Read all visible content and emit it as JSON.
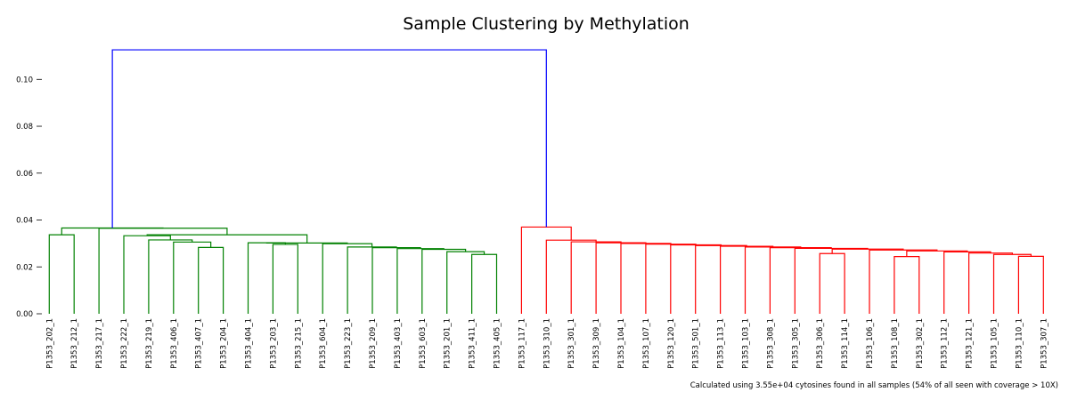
{
  "chart_data": {
    "type": "dendrogram",
    "title": "Sample Clustering by Methylation",
    "ylabel": "",
    "xlabel": "",
    "ylim": [
      0,
      0.113
    ],
    "yticks": [
      "0.00",
      "0.02",
      "0.04",
      "0.06",
      "0.08",
      "0.10"
    ],
    "ytick_values": [
      0,
      0.02,
      0.04,
      0.06,
      0.08,
      0.1
    ],
    "footnote": "Calculated using 3.55e+04 cytosines found in all samples (54% of all seen with coverage > 10X)",
    "colors": {
      "cluster_a": "#008000",
      "cluster_b": "#ff0000",
      "root": "#0000ff"
    },
    "leaves": [
      "P1353_202_1",
      "P1353_212_1",
      "P1353_217_1",
      "P1353_222_1",
      "P1353_219_1",
      "P1353_406_1",
      "P1353_407_1",
      "P1353_204_1",
      "P1353_404_1",
      "P1353_203_1",
      "P1353_215_1",
      "P1353_604_1",
      "P1353_223_1",
      "P1353_209_1",
      "P1353_403_1",
      "P1353_603_1",
      "P1353_201_1",
      "P1353_411_1",
      "P1353_405_1",
      "P1353_117_1",
      "P1353_310_1",
      "P1353_301_1",
      "P1353_309_1",
      "P1353_104_1",
      "P1353_107_1",
      "P1353_120_1",
      "P1353_501_1",
      "P1353_113_1",
      "P1353_103_1",
      "P1353_308_1",
      "P1353_305_1",
      "P1353_306_1",
      "P1353_114_1",
      "P1353_106_1",
      "P1353_108_1",
      "P1353_302_1",
      "P1353_112_1",
      "P1353_121_1",
      "P1353_105_1",
      "P1353_110_1",
      "P1353_307_1"
    ],
    "merges": [
      {
        "id": "gA1",
        "left": "P1353_202_1",
        "right": "P1353_212_1",
        "height": 0.0337,
        "color": "cluster_a"
      },
      {
        "id": "gB4",
        "left": "P1353_407_1",
        "right": "P1353_204_1",
        "height": 0.0283,
        "color": "cluster_a"
      },
      {
        "id": "gB3",
        "left": "P1353_406_1",
        "right": "gB4",
        "height": 0.0306,
        "color": "cluster_a"
      },
      {
        "id": "gB2",
        "left": "P1353_219_1",
        "right": "gB3",
        "height": 0.0315,
        "color": "cluster_a"
      },
      {
        "id": "gB1",
        "left": "P1353_222_1",
        "right": "gB2",
        "height": 0.0333,
        "color": "cluster_a"
      },
      {
        "id": "gC3",
        "left": "P1353_203_1",
        "right": "P1353_215_1",
        "height": 0.0296,
        "color": "cluster_a"
      },
      {
        "id": "gC2",
        "left": "P1353_404_1",
        "right": "gC3",
        "height": 0.0303,
        "color": "cluster_a"
      },
      {
        "id": "gD8",
        "left": "P1353_411_1",
        "right": "P1353_405_1",
        "height": 0.0253,
        "color": "cluster_a"
      },
      {
        "id": "gD7",
        "left": "P1353_201_1",
        "right": "gD8",
        "height": 0.0265,
        "color": "cluster_a"
      },
      {
        "id": "gD6",
        "left": "P1353_603_1",
        "right": "gD7",
        "height": 0.0275,
        "color": "cluster_a"
      },
      {
        "id": "gD5",
        "left": "P1353_403_1",
        "right": "gD6",
        "height": 0.0278,
        "color": "cluster_a"
      },
      {
        "id": "gD4",
        "left": "P1353_209_1",
        "right": "gD5",
        "height": 0.0282,
        "color": "cluster_a"
      },
      {
        "id": "gD3",
        "left": "P1353_223_1",
        "right": "gD4",
        "height": 0.0285,
        "color": "cluster_a"
      },
      {
        "id": "gD2",
        "left": "P1353_604_1",
        "right": "gD3",
        "height": 0.0299,
        "color": "cluster_a"
      },
      {
        "id": "gC1",
        "left": "gC2",
        "right": "gD2",
        "height": 0.0302,
        "color": "cluster_a"
      },
      {
        "id": "gX",
        "left": "gB1",
        "right": "gC1",
        "height": 0.0337,
        "color": "cluster_a"
      },
      {
        "id": "gY",
        "left": "P1353_217_1",
        "right": "gX",
        "height": 0.0365,
        "color": "cluster_a"
      },
      {
        "id": "gTop",
        "left": "gA1",
        "right": "gY",
        "height": 0.0366,
        "color": "cluster_a"
      },
      {
        "id": "r20",
        "left": "P1353_110_1",
        "right": "P1353_307_1",
        "height": 0.0245,
        "color": "cluster_b"
      },
      {
        "id": "r19",
        "left": "P1353_105_1",
        "right": "r20",
        "height": 0.0253,
        "color": "cluster_b"
      },
      {
        "id": "r18",
        "left": "P1353_121_1",
        "right": "r19",
        "height": 0.0259,
        "color": "cluster_b"
      },
      {
        "id": "r17",
        "left": "P1353_112_1",
        "right": "r18",
        "height": 0.0264,
        "color": "cluster_b"
      },
      {
        "id": "r16",
        "left": "P1353_108_1",
        "right": "P1353_302_1",
        "height": 0.0244,
        "color": "cluster_b"
      },
      {
        "id": "r15",
        "left": "r16",
        "right": "r17",
        "height": 0.0268,
        "color": "cluster_b"
      },
      {
        "id": "r14",
        "left": "P1353_106_1",
        "right": "r15",
        "height": 0.0272,
        "color": "cluster_b"
      },
      {
        "id": "r13",
        "left": "P1353_306_1",
        "right": "P1353_114_1",
        "height": 0.0257,
        "color": "cluster_b"
      },
      {
        "id": "r12",
        "left": "r13",
        "right": "r14",
        "height": 0.0276,
        "color": "cluster_b"
      },
      {
        "id": "r11",
        "left": "P1353_305_1",
        "right": "r12",
        "height": 0.0279,
        "color": "cluster_b"
      },
      {
        "id": "r10",
        "left": "P1353_308_1",
        "right": "r11",
        "height": 0.0282,
        "color": "cluster_b"
      },
      {
        "id": "r9",
        "left": "P1353_103_1",
        "right": "r10",
        "height": 0.0285,
        "color": "cluster_b"
      },
      {
        "id": "r8",
        "left": "P1353_113_1",
        "right": "r9",
        "height": 0.0288,
        "color": "cluster_b"
      },
      {
        "id": "r7",
        "left": "P1353_501_1",
        "right": "r8",
        "height": 0.0291,
        "color": "cluster_b"
      },
      {
        "id": "r6",
        "left": "P1353_120_1",
        "right": "r7",
        "height": 0.0294,
        "color": "cluster_b"
      },
      {
        "id": "r5",
        "left": "P1353_107_1",
        "right": "r6",
        "height": 0.0297,
        "color": "cluster_b"
      },
      {
        "id": "r4",
        "left": "P1353_104_1",
        "right": "r5",
        "height": 0.03,
        "color": "cluster_b"
      },
      {
        "id": "r3",
        "left": "P1353_309_1",
        "right": "r4",
        "height": 0.0303,
        "color": "cluster_b"
      },
      {
        "id": "r2",
        "left": "P1353_301_1",
        "right": "r3",
        "height": 0.0307,
        "color": "cluster_b"
      },
      {
        "id": "r1",
        "left": "P1353_310_1",
        "right": "r2",
        "height": 0.0314,
        "color": "cluster_b"
      },
      {
        "id": "rTop",
        "left": "P1353_117_1",
        "right": "r1",
        "height": 0.037,
        "color": "cluster_b"
      },
      {
        "id": "root",
        "left": "gTop",
        "right": "rTop",
        "height": 0.1126,
        "color": "root"
      }
    ]
  }
}
